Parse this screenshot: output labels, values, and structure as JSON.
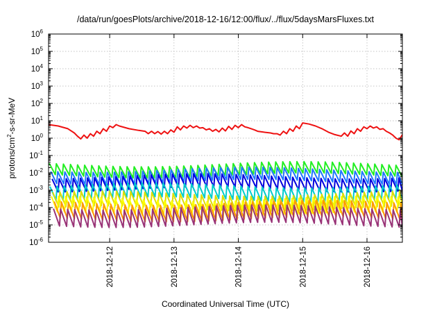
{
  "chart_data": {
    "type": "line",
    "title": "/data/run/goesPlots/archive/2018-12-16/12:00/flux/../flux/5daysMarsFluxes.txt",
    "xlabel": "Coordinated Universal Time (UTC)",
    "ylabel": {
      "base": "protons/cm",
      "exp": "2",
      "rest": "-s-sr-MeV"
    },
    "y_scale": "log",
    "ylim_exp": [
      -6,
      6
    ],
    "y_ticks": [
      {
        "base": "10",
        "exp": "-6"
      },
      {
        "base": "10",
        "exp": "-5"
      },
      {
        "base": "10",
        "exp": "-4"
      },
      {
        "base": "10",
        "exp": "-3"
      },
      {
        "base": "10",
        "exp": "-2"
      },
      {
        "base": "10",
        "exp": "-1"
      },
      {
        "base": "10",
        "exp": "0"
      },
      {
        "base": "10",
        "exp": "1"
      },
      {
        "base": "10",
        "exp": "2"
      },
      {
        "base": "10",
        "exp": "3"
      },
      {
        "base": "10",
        "exp": "4"
      },
      {
        "base": "10",
        "exp": "5"
      },
      {
        "base": "10",
        "exp": "6"
      }
    ],
    "xlim_days": [
      11.05,
      16.55
    ],
    "x_ticks": [
      {
        "label": "2018-12-12",
        "day": 12
      },
      {
        "label": "2018-12-13",
        "day": 13
      },
      {
        "label": "2018-12-14",
        "day": 14
      },
      {
        "label": "2018-12-15",
        "day": 15
      },
      {
        "label": "2018-12-16",
        "day": 16
      }
    ],
    "grid": true,
    "series": [
      {
        "color": "#ee1111",
        "x": [
          11.05,
          11.2,
          11.35,
          11.45,
          11.5,
          11.55,
          11.6,
          11.65,
          11.7,
          11.75,
          11.8,
          11.85,
          11.9,
          11.95,
          12.0,
          12.05,
          12.1,
          12.15,
          12.3,
          12.45,
          12.55,
          12.6,
          12.65,
          12.7,
          12.75,
          12.8,
          12.85,
          12.9,
          12.95,
          13.0,
          13.05,
          13.1,
          13.15,
          13.2,
          13.25,
          13.3,
          13.35,
          13.4,
          13.45,
          13.5,
          13.55,
          13.6,
          13.65,
          13.7,
          13.75,
          13.8,
          13.85,
          13.9,
          13.95,
          14.0,
          14.05,
          14.1,
          14.15,
          14.2,
          14.25,
          14.3,
          14.4,
          14.5,
          14.55,
          14.6,
          14.65,
          14.7,
          14.75,
          14.8,
          14.85,
          14.9,
          14.95,
          15.0,
          15.1,
          15.2,
          15.3,
          15.4,
          15.5,
          15.6,
          15.65,
          15.7,
          15.75,
          15.8,
          15.85,
          15.9,
          15.95,
          16.0,
          16.05,
          16.1,
          16.15,
          16.2,
          16.25,
          16.3,
          16.35,
          16.4,
          16.45,
          16.5,
          16.55
        ],
        "y": [
          6.0,
          5.0,
          3.5,
          2.0,
          1.3,
          0.9,
          1.5,
          1.0,
          1.8,
          1.3,
          2.5,
          1.8,
          3.5,
          2.5,
          5.0,
          4.0,
          6.0,
          5.0,
          3.5,
          2.8,
          2.5,
          1.8,
          2.5,
          1.8,
          2.4,
          1.7,
          2.5,
          1.8,
          3.0,
          2.2,
          4.5,
          3.0,
          5.0,
          3.8,
          5.5,
          4.0,
          5.0,
          3.8,
          4.0,
          3.0,
          3.5,
          2.5,
          3.2,
          2.3,
          3.8,
          2.6,
          4.8,
          3.2,
          5.5,
          4.0,
          6.0,
          4.5,
          4.0,
          3.5,
          3.0,
          2.5,
          2.2,
          2.0,
          1.8,
          1.8,
          1.5,
          2.5,
          1.8,
          3.5,
          2.5,
          5.0,
          3.5,
          7.5,
          6.5,
          5.0,
          3.5,
          2.2,
          1.6,
          1.3,
          2.0,
          1.3,
          2.6,
          1.8,
          3.5,
          2.5,
          4.5,
          3.5,
          5.0,
          3.8,
          4.5,
          3.2,
          3.5,
          2.5,
          2.0,
          1.5,
          1.0,
          0.8,
          1.6
        ]
      },
      {
        "color": "#22ee22",
        "base": 0.025,
        "amp_dec": 0.55,
        "phase": 0.1,
        "period": 0.11
      },
      {
        "color": "#1e78ff",
        "base": 0.012,
        "amp_dec": 0.6,
        "phase": 0.3,
        "period": 0.11
      },
      {
        "color": "#0000dd",
        "base": 0.005,
        "amp_dec": 0.65,
        "phase": 0.5,
        "period": 0.11
      },
      {
        "color": "#00cccc",
        "base": 0.0015,
        "amp_dec": 0.7,
        "phase": 0.2,
        "period": 0.11
      },
      {
        "color": "#dddd00",
        "base": 0.0005,
        "amp_dec": 0.75,
        "phase": 0.6,
        "period": 0.11
      },
      {
        "color": "#ffff00",
        "base": 0.00025,
        "amp_dec": 0.8,
        "phase": 0.4,
        "period": 0.11
      },
      {
        "color": "#ff9900",
        "base": 0.00015,
        "amp_dec": 0.85,
        "phase": 0.8,
        "period": 0.11
      },
      {
        "color": "#993377",
        "base": 8e-05,
        "amp_dec": 0.9,
        "phase": 0.7,
        "period": 0.11
      }
    ]
  }
}
